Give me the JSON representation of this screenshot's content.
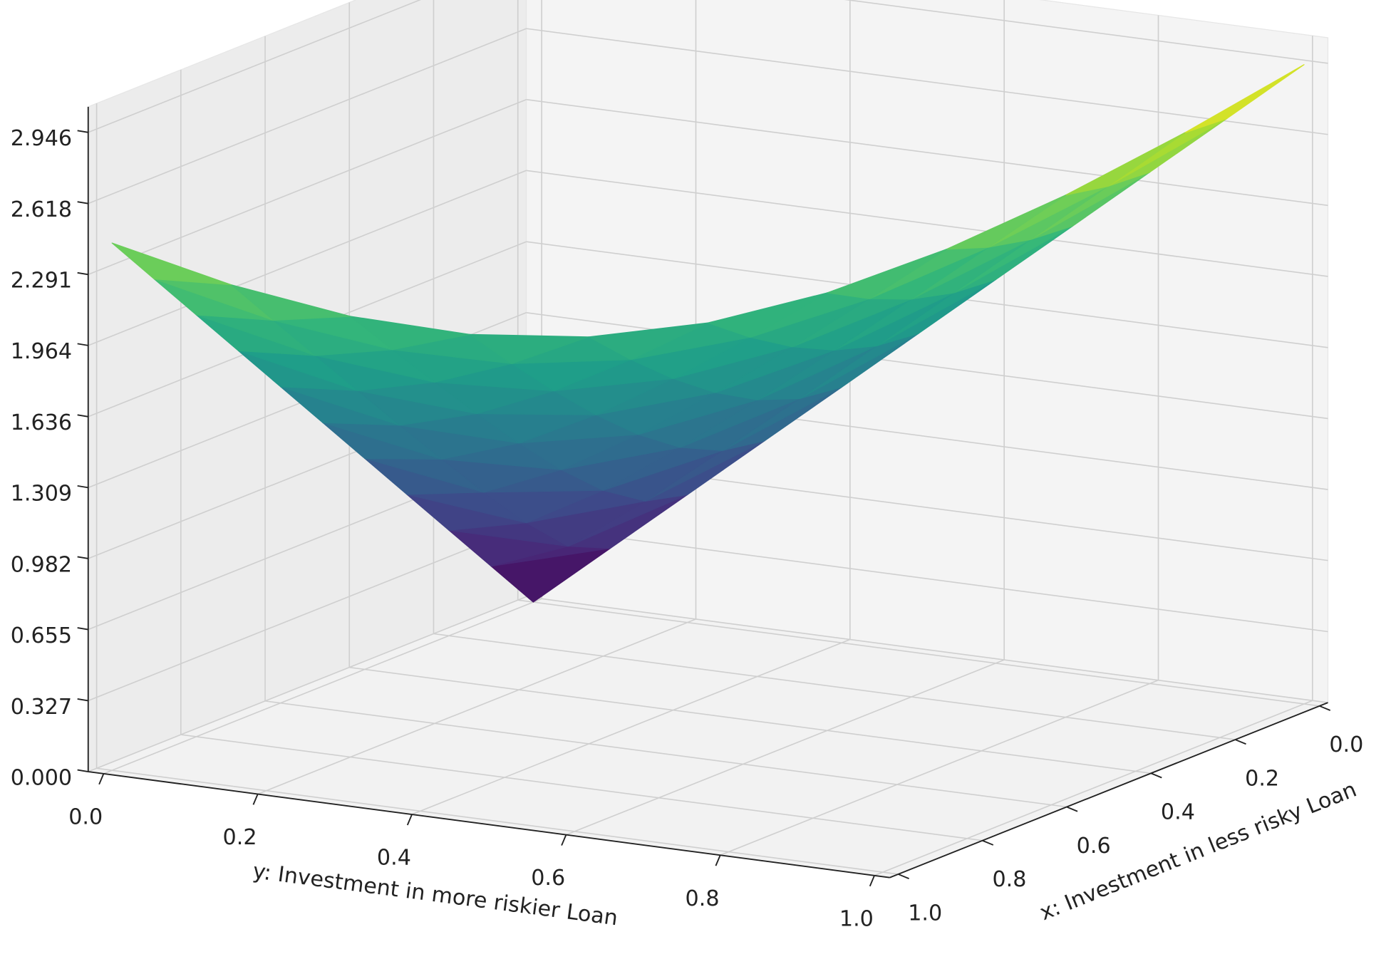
{
  "chart_data": {
    "type": "surface",
    "xlabel": "x: Investment in less risky Loan",
    "ylabel": "y: Investment in more riskier Loan",
    "x": [
      0,
      0.1,
      0.2,
      0.3,
      0.4,
      0.5,
      0.6,
      0.7,
      0.8,
      0.9,
      1
    ],
    "y": [
      0,
      0.1,
      0.2,
      0.3,
      0.4,
      0.5,
      0.6,
      0.7,
      0.8,
      0.9,
      1
    ],
    "z": [
      [
        0,
        0.295,
        0.589,
        0.884,
        1.178,
        1.473,
        1.768,
        2.062,
        2.357,
        2.651,
        2.946
      ],
      [
        0.243,
        0.382,
        0.637,
        0.917,
        1.203,
        1.493,
        1.784,
        2.077,
        2.369,
        2.663,
        null
      ],
      [
        0.486,
        0.568,
        0.764,
        1.009,
        1.275,
        1.551,
        1.833,
        2.119,
        2.406,
        null,
        null
      ],
      [
        0.729,
        0.786,
        0.937,
        1.146,
        1.386,
        1.644,
        1.912,
        2.187,
        null,
        null,
        null
      ],
      [
        0.972,
        1.016,
        1.137,
        1.314,
        1.528,
        1.765,
        2.017,
        null,
        null,
        null,
        null
      ],
      [
        1.215,
        1.25,
        1.35,
        1.502,
        1.693,
        1.909,
        null,
        null,
        null,
        null,
        null
      ],
      [
        1.458,
        1.487,
        1.573,
        1.705,
        1.875,
        null,
        null,
        null,
        null,
        null,
        null
      ],
      [
        1.701,
        1.726,
        1.8,
        1.917,
        null,
        null,
        null,
        null,
        null,
        null,
        null
      ],
      [
        1.944,
        1.966,
        2.031,
        null,
        null,
        null,
        null,
        null,
        null,
        null,
        null
      ],
      [
        2.187,
        2.207,
        null,
        null,
        null,
        null,
        null,
        null,
        null,
        null,
        null
      ],
      [
        2.43,
        null,
        null,
        null,
        null,
        null,
        null,
        null,
        null,
        null,
        null
      ]
    ],
    "colormap": "viridis",
    "xlim": [
      0,
      1
    ],
    "ylim": [
      0,
      1
    ],
    "zlim": [
      0,
      2.946
    ],
    "xticks": [
      {
        "value": 0,
        "label": "0.0"
      },
      0.2,
      0.4,
      0.6,
      0.8,
      {
        "value": 1,
        "label": "1.0"
      }
    ],
    "yticks": [
      {
        "value": 0,
        "label": "0.0"
      },
      0.2,
      0.4,
      0.6,
      0.8,
      {
        "value": 1,
        "label": "1.0"
      }
    ],
    "zticks": [
      {
        "value": 0,
        "label": "0.000"
      },
      0.327,
      0.655,
      0.982,
      1.309,
      1.636,
      1.964,
      2.291,
      2.618,
      2.946
    ],
    "grid": true
  }
}
